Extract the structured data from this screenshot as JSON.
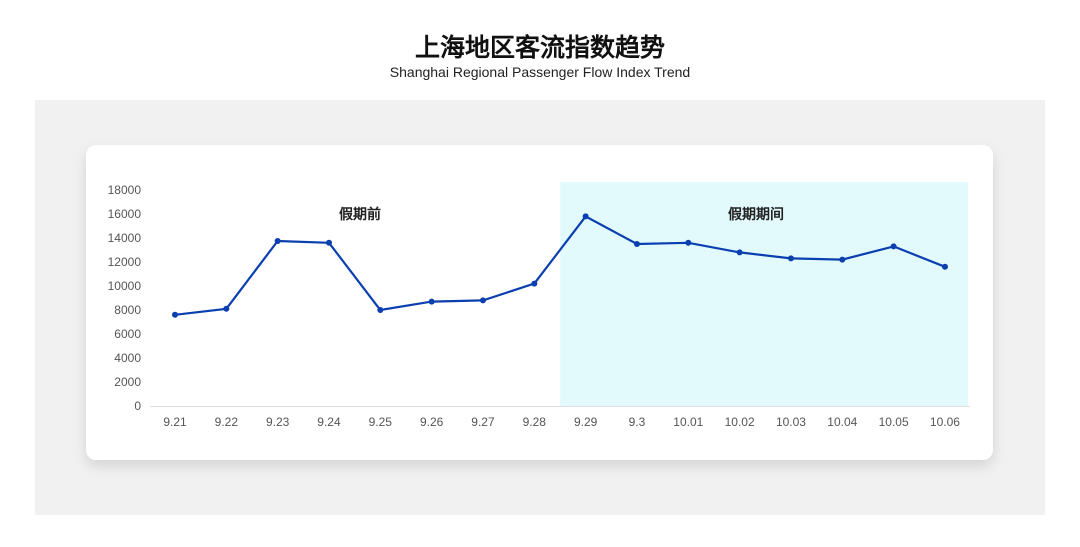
{
  "title": "上海地区客流指数趋势",
  "subtitle": "Shanghai Regional Passenger Flow Index Trend",
  "chart_data": {
    "type": "line",
    "categories": [
      "9.21",
      "9.22",
      "9.23",
      "9.24",
      "9.25",
      "9.26",
      "9.27",
      "9.28",
      "9.29",
      "9.3",
      "10.01",
      "10.02",
      "10.03",
      "10.04",
      "10.05",
      "10.06"
    ],
    "values": [
      7600,
      8100,
      13750,
      13600,
      8000,
      8700,
      8800,
      10200,
      15800,
      13500,
      13600,
      12800,
      12300,
      12200,
      13300,
      11600
    ],
    "ylim": [
      0,
      18000
    ],
    "yticks": [
      0,
      2000,
      4000,
      6000,
      8000,
      10000,
      12000,
      14000,
      16000,
      18000
    ],
    "grid": false,
    "line_color": "#0a3fb0",
    "regions": [
      {
        "label": "假期前",
        "from": "9.21",
        "to": "9.28",
        "color": "#ffffff"
      },
      {
        "label": "假期期间",
        "from": "9.29",
        "to": "10.06",
        "color": "#e3fafd"
      }
    ]
  }
}
